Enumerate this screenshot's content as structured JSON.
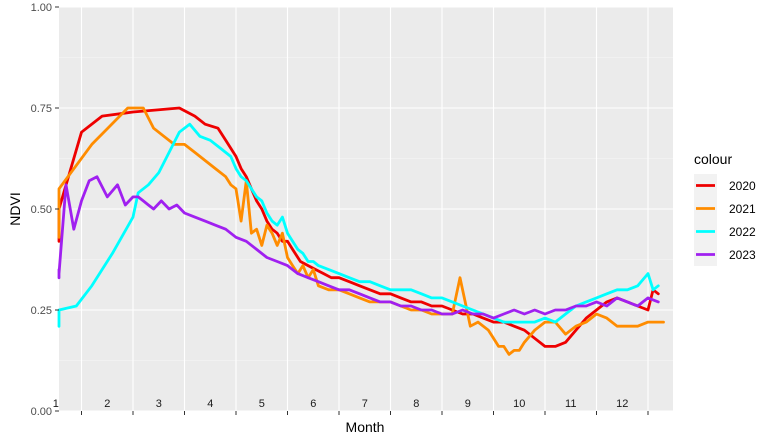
{
  "chart_data": {
    "type": "line",
    "xlabel": "Month",
    "ylabel": "NDVI",
    "ylim": [
      0,
      1
    ],
    "xlim": [
      0,
      12.3
    ],
    "y_ticks": [
      "0.00",
      "0.25",
      "0.50",
      "0.75",
      "1.00"
    ],
    "y_tick_values": [
      0,
      0.25,
      0.5,
      0.75,
      1.0
    ],
    "month_labels": [
      "1",
      "2",
      "3",
      "4",
      "5",
      "6",
      "7",
      "8",
      "9",
      "10",
      "11",
      "12"
    ],
    "grid": true,
    "legend_position": "right",
    "legend_title": "colour",
    "series": [
      {
        "name": "2020",
        "color": "#EE0000",
        "x": [
          0.2,
          0.55,
          1.0,
          1.4,
          2.0,
          2.9,
          3.2,
          3.4,
          3.65,
          3.8,
          4.0,
          4.1,
          4.2,
          4.3,
          4.4,
          4.5,
          4.6,
          4.7,
          4.8,
          4.9,
          5.0,
          5.1,
          5.25,
          5.4,
          5.55,
          5.7,
          5.85,
          6.0,
          6.2,
          6.4,
          6.6,
          6.8,
          7.0,
          7.2,
          7.4,
          7.6,
          7.8,
          8.0,
          8.2,
          8.4,
          8.6,
          8.8,
          9.0,
          9.2,
          9.4,
          9.6,
          9.8,
          10.0,
          10.2,
          10.4,
          10.6,
          10.8,
          11.0,
          11.2,
          11.4,
          11.6,
          11.8,
          12.0,
          12.1,
          12.2
        ],
        "y": [
          0.42,
          0.5,
          0.69,
          0.73,
          0.74,
          0.75,
          0.73,
          0.71,
          0.7,
          0.67,
          0.63,
          0.6,
          0.58,
          0.55,
          0.52,
          0.5,
          0.47,
          0.45,
          0.44,
          0.42,
          0.42,
          0.4,
          0.37,
          0.36,
          0.35,
          0.34,
          0.33,
          0.33,
          0.32,
          0.31,
          0.3,
          0.29,
          0.29,
          0.28,
          0.27,
          0.27,
          0.26,
          0.26,
          0.25,
          0.24,
          0.24,
          0.23,
          0.22,
          0.22,
          0.21,
          0.2,
          0.18,
          0.16,
          0.16,
          0.17,
          0.2,
          0.23,
          0.25,
          0.27,
          0.28,
          0.27,
          0.26,
          0.25,
          0.3,
          0.29
        ]
      },
      {
        "name": "2021",
        "color": "#FF8C00",
        "x": [
          0.15,
          0.5,
          1.2,
          1.9,
          2.2,
          2.4,
          2.6,
          2.8,
          3.0,
          3.2,
          3.4,
          3.6,
          3.8,
          3.9,
          4.0,
          4.1,
          4.2,
          4.3,
          4.4,
          4.5,
          4.6,
          4.7,
          4.8,
          4.9,
          5.0,
          5.1,
          5.2,
          5.3,
          5.4,
          5.5,
          5.6,
          5.8,
          6.0,
          6.2,
          6.4,
          6.6,
          6.8,
          7.0,
          7.2,
          7.4,
          7.6,
          7.8,
          8.0,
          8.2,
          8.35,
          8.45,
          8.55,
          8.7,
          8.9,
          9.0,
          9.1,
          9.2,
          9.3,
          9.4,
          9.5,
          9.6,
          9.8,
          10.0,
          10.2,
          10.4,
          10.6,
          10.8,
          11.0,
          11.2,
          11.4,
          11.6,
          11.8,
          12.0,
          12.2,
          12.3
        ],
        "y": [
          0.43,
          0.55,
          0.66,
          0.75,
          0.75,
          0.7,
          0.68,
          0.66,
          0.66,
          0.64,
          0.62,
          0.6,
          0.58,
          0.56,
          0.55,
          0.47,
          0.57,
          0.44,
          0.45,
          0.41,
          0.46,
          0.44,
          0.41,
          0.44,
          0.38,
          0.36,
          0.34,
          0.36,
          0.33,
          0.35,
          0.31,
          0.3,
          0.3,
          0.29,
          0.28,
          0.27,
          0.27,
          0.27,
          0.26,
          0.25,
          0.25,
          0.24,
          0.24,
          0.24,
          0.33,
          0.27,
          0.21,
          0.22,
          0.2,
          0.18,
          0.16,
          0.16,
          0.14,
          0.15,
          0.15,
          0.17,
          0.2,
          0.22,
          0.22,
          0.19,
          0.21,
          0.22,
          0.24,
          0.23,
          0.21,
          0.21,
          0.21,
          0.22,
          0.22,
          0.22
        ]
      },
      {
        "name": "2022",
        "color": "#00FFFF",
        "x": [
          -0.3,
          -0.1,
          0.0,
          0.5,
          0.9,
          1.2,
          1.6,
          2.0,
          2.1,
          2.3,
          2.5,
          2.7,
          2.9,
          3.1,
          3.3,
          3.5,
          3.7,
          3.9,
          4.0,
          4.1,
          4.2,
          4.3,
          4.4,
          4.5,
          4.6,
          4.7,
          4.8,
          4.9,
          5.0,
          5.1,
          5.2,
          5.3,
          5.4,
          5.5,
          5.6,
          5.8,
          6.0,
          6.2,
          6.4,
          6.6,
          6.8,
          7.0,
          7.2,
          7.4,
          7.6,
          7.8,
          8.0,
          8.2,
          8.4,
          8.6,
          8.8,
          9.0,
          9.2,
          9.4,
          9.6,
          9.8,
          10.0,
          10.2,
          10.4,
          10.6,
          10.8,
          11.0,
          11.2,
          11.4,
          11.6,
          11.8,
          12.0,
          12.1,
          12.2
        ],
        "y": [
          0.21,
          0.21,
          0.23,
          0.25,
          0.26,
          0.31,
          0.39,
          0.48,
          0.54,
          0.56,
          0.59,
          0.64,
          0.69,
          0.71,
          0.68,
          0.67,
          0.65,
          0.63,
          0.6,
          0.58,
          0.57,
          0.55,
          0.53,
          0.52,
          0.49,
          0.47,
          0.46,
          0.48,
          0.44,
          0.42,
          0.4,
          0.39,
          0.37,
          0.37,
          0.36,
          0.35,
          0.34,
          0.33,
          0.32,
          0.32,
          0.31,
          0.3,
          0.3,
          0.3,
          0.29,
          0.28,
          0.28,
          0.27,
          0.26,
          0.25,
          0.24,
          0.23,
          0.22,
          0.22,
          0.22,
          0.22,
          0.23,
          0.22,
          0.24,
          0.26,
          0.27,
          0.28,
          0.29,
          0.3,
          0.3,
          0.31,
          0.34,
          0.3,
          0.31
        ]
      },
      {
        "name": "2023",
        "color": "#A020F0",
        "x": [
          0.15,
          0.25,
          0.5,
          0.7,
          0.85,
          1.0,
          1.15,
          1.3,
          1.5,
          1.7,
          1.85,
          2.0,
          2.1,
          2.2,
          2.3,
          2.4,
          2.55,
          2.7,
          2.85,
          3.0,
          3.2,
          3.4,
          3.6,
          3.8,
          4.0,
          4.2,
          4.4,
          4.6,
          4.8,
          5.0,
          5.2,
          5.4,
          5.6,
          5.8,
          6.0,
          6.2,
          6.4,
          6.6,
          6.8,
          7.0,
          7.2,
          7.4,
          7.6,
          7.8,
          8.0,
          8.2,
          8.4,
          8.6,
          8.8,
          9.0,
          9.2,
          9.4,
          9.6,
          9.8,
          10.0,
          10.2,
          10.4,
          10.6,
          10.8,
          11.0,
          11.2,
          11.4,
          11.6,
          11.8,
          12.0,
          12.2
        ],
        "y": [
          0.35,
          0.33,
          0.34,
          0.56,
          0.45,
          0.52,
          0.57,
          0.58,
          0.53,
          0.56,
          0.51,
          0.53,
          0.53,
          0.52,
          0.51,
          0.5,
          0.52,
          0.5,
          0.51,
          0.49,
          0.48,
          0.47,
          0.46,
          0.45,
          0.43,
          0.42,
          0.4,
          0.38,
          0.37,
          0.36,
          0.34,
          0.33,
          0.32,
          0.31,
          0.3,
          0.3,
          0.29,
          0.28,
          0.27,
          0.27,
          0.26,
          0.26,
          0.25,
          0.25,
          0.24,
          0.24,
          0.25,
          0.24,
          0.24,
          0.23,
          0.24,
          0.25,
          0.24,
          0.25,
          0.24,
          0.25,
          0.25,
          0.26,
          0.26,
          0.27,
          0.26,
          0.28,
          0.27,
          0.26,
          0.28,
          0.27
        ]
      }
    ]
  }
}
